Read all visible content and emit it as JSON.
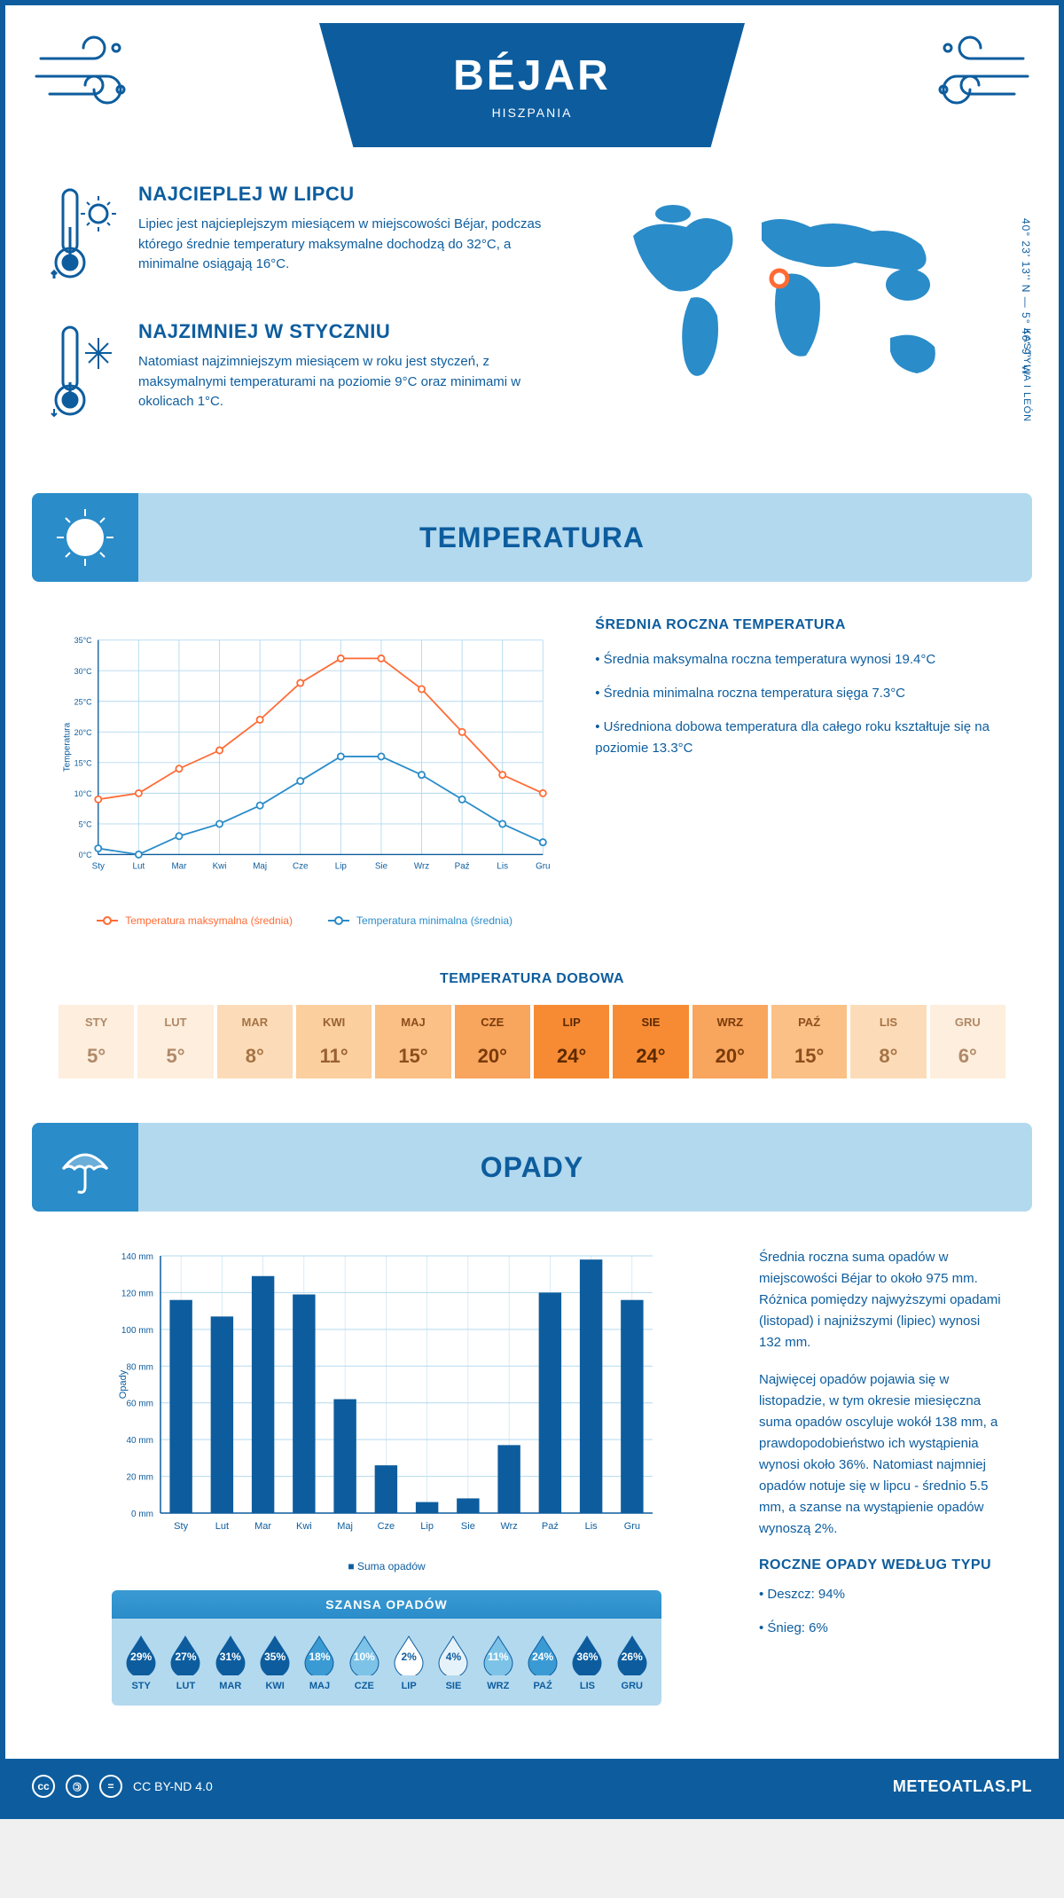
{
  "header": {
    "title": "BÉJAR",
    "subtitle": "HISZPANIA"
  },
  "map": {
    "coordinates": "40° 23' 13'' N — 5° 46' 9'' W",
    "region": "KASTYLIA I LEÓN",
    "marker_x": 195,
    "marker_y": 108,
    "world_color": "#2a8cc9",
    "marker_stroke": "#ff6b35"
  },
  "intro_hot": {
    "title": "NAJCIEPLEJ W LIPCU",
    "text": "Lipiec jest najcieplejszym miesiącem w miejscowości Béjar, podczas którego średnie temperatury maksymalne dochodzą do 32°C, a minimalne osiągają 16°C."
  },
  "intro_cold": {
    "title": "NAJZIMNIEJ W STYCZNIU",
    "text": "Natomiast najzimniejszym miesiącem w roku jest styczeń, z maksymalnymi temperaturami na poziomie 9°C oraz minimami w okolicach 1°C."
  },
  "temperatura": {
    "banner": "TEMPERATURA",
    "side_title": "ŚREDNIA ROCZNA TEMPERATURA",
    "bullets": [
      "• Średnia maksymalna roczna temperatura wynosi 19.4°C",
      "• Średnia minimalna roczna temperatura sięga 7.3°C",
      "• Uśredniona dobowa temperatura dla całego roku kształtuje się na poziomie 13.3°C"
    ],
    "chart": {
      "type": "line",
      "months": [
        "Sty",
        "Lut",
        "Mar",
        "Kwi",
        "Maj",
        "Cze",
        "Lip",
        "Sie",
        "Wrz",
        "Paź",
        "Lis",
        "Gru"
      ],
      "max_series": {
        "label": "Temperatura maksymalna (średnia)",
        "color": "#ff6b35",
        "values": [
          9,
          10,
          14,
          17,
          22,
          28,
          32,
          32,
          27,
          20,
          13,
          10
        ]
      },
      "min_series": {
        "label": "Temperatura minimalna (średnia)",
        "color": "#2a8cc9",
        "values": [
          1,
          0,
          3,
          5,
          8,
          12,
          16,
          16,
          13,
          9,
          5,
          2
        ]
      },
      "ylim": [
        0,
        35
      ],
      "ytick_step": 5,
      "ylabel": "Temperatura",
      "grid_color": "#b3d9ef",
      "background_color": "#ffffff"
    }
  },
  "daily": {
    "title": "TEMPERATURA DOBOWA",
    "months": [
      "STY",
      "LUT",
      "MAR",
      "KWI",
      "MAJ",
      "CZE",
      "LIP",
      "SIE",
      "WRZ",
      "PAŹ",
      "LIS",
      "GRU"
    ],
    "values": [
      "5°",
      "5°",
      "8°",
      "11°",
      "15°",
      "20°",
      "24°",
      "24°",
      "20°",
      "15°",
      "8°",
      "6°"
    ],
    "bg_colors": [
      "#fdeedd",
      "#fdeedd",
      "#fcdcb8",
      "#fbcf9e",
      "#fac085",
      "#f8a55d",
      "#f78b33",
      "#f78b33",
      "#f8a55d",
      "#fac085",
      "#fcdcb8",
      "#fdeedd"
    ],
    "text_colors": [
      "#b08968",
      "#b08968",
      "#a57344",
      "#9a6030",
      "#8f4e1e",
      "#7a3b0a",
      "#5c2a00",
      "#5c2a00",
      "#7a3b0a",
      "#8f4e1e",
      "#a57344",
      "#b08968"
    ]
  },
  "opady": {
    "banner": "OPADY",
    "side_p1": "Średnia roczna suma opadów w miejscowości Béjar to około 975 mm. Różnica pomiędzy najwyższymi opadami (listopad) i najniższymi (lipiec) wynosi 132 mm.",
    "side_p2": "Najwięcej opadów pojawia się w listopadzie, w tym okresie miesięczna suma opadów oscyluje wokół 138 mm, a prawdopodobieństwo ich wystąpienia wynosi około 36%. Natomiast najmniej opadów notuje się w lipcu - średnio 5.5 mm, a szanse na wystąpienie opadów wynoszą 2%.",
    "chart": {
      "type": "bar",
      "months": [
        "Sty",
        "Lut",
        "Mar",
        "Kwi",
        "Maj",
        "Cze",
        "Lip",
        "Sie",
        "Wrz",
        "Paź",
        "Lis",
        "Gru"
      ],
      "values": [
        116,
        107,
        129,
        119,
        62,
        26,
        6,
        8,
        37,
        120,
        138,
        116
      ],
      "ylim": [
        0,
        140
      ],
      "ytick_step": 20,
      "ylabel": "Opady",
      "bar_color": "#0d5d9e",
      "grid_color": "#b3d9ef",
      "legend_label": "Suma opadów",
      "bar_width": 0.55
    },
    "szansa": {
      "title": "SZANSA OPADÓW",
      "months": [
        "STY",
        "LUT",
        "MAR",
        "KWI",
        "MAJ",
        "CZE",
        "LIP",
        "SIE",
        "WRZ",
        "PAŹ",
        "LIS",
        "GRU"
      ],
      "pct": [
        "29%",
        "27%",
        "31%",
        "35%",
        "18%",
        "10%",
        "2%",
        "4%",
        "11%",
        "24%",
        "36%",
        "26%"
      ],
      "drop_colors": [
        "#0d5d9e",
        "#0d5d9e",
        "#0d5d9e",
        "#0d5d9e",
        "#3a9bd4",
        "#7dc3e8",
        "#ffffff",
        "#e6f2fa",
        "#7dc3e8",
        "#3a9bd4",
        "#0d5d9e",
        "#0d5d9e"
      ],
      "text_colors": [
        "#fff",
        "#fff",
        "#fff",
        "#fff",
        "#fff",
        "#fff",
        "#0d5d9e",
        "#0d5d9e",
        "#fff",
        "#fff",
        "#fff",
        "#fff"
      ]
    },
    "by_type": {
      "title": "ROCZNE OPADY WEDŁUG TYPU",
      "items": [
        "• Deszcz: 94%",
        "• Śnieg: 6%"
      ]
    }
  },
  "footer": {
    "license": "CC BY-ND 4.0",
    "site": "METEOATLAS.PL"
  },
  "colors": {
    "primary": "#0d5d9e",
    "light_blue": "#b3d9ef",
    "mid_blue": "#2a8cc9",
    "accent": "#ff6b35"
  }
}
